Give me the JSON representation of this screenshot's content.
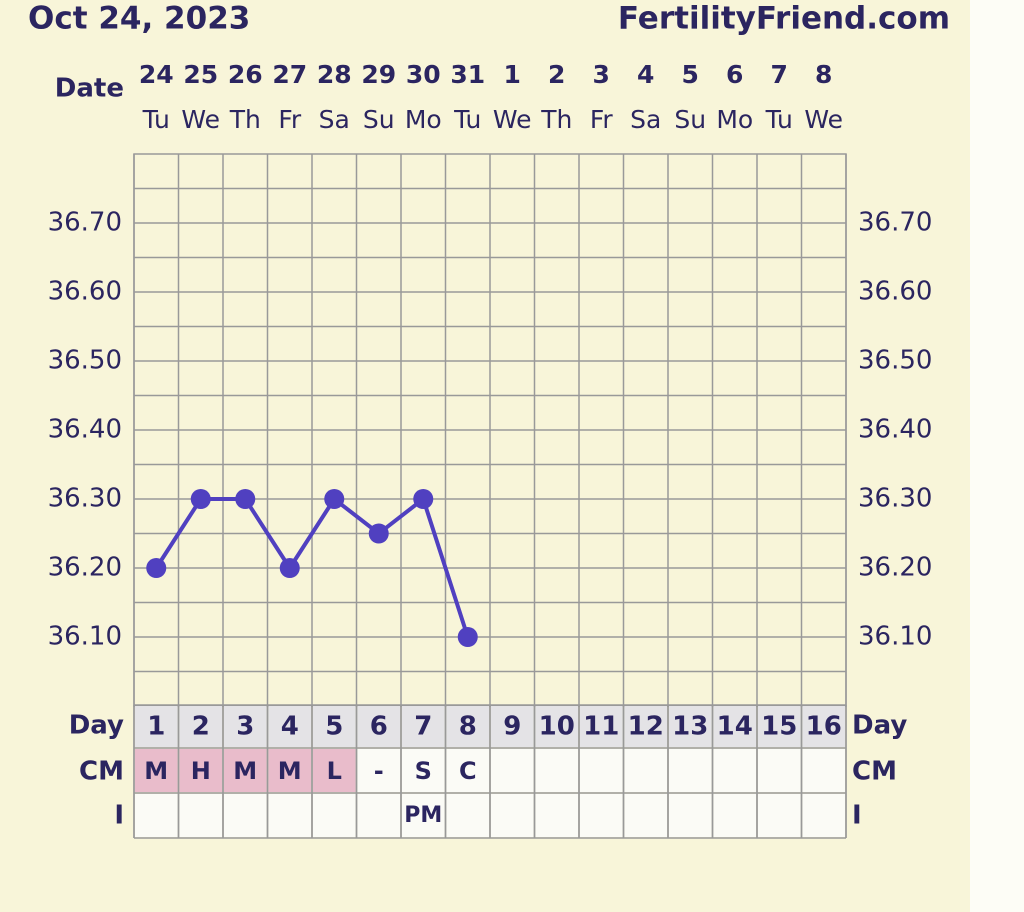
{
  "chart_data": {
    "type": "line",
    "title": "Oct 24, 2023",
    "brand": "FertilityFriend.com",
    "x_label": "Date",
    "categories": [
      "24",
      "25",
      "26",
      "27",
      "28",
      "29",
      "30",
      "31",
      "1",
      "2",
      "3",
      "4",
      "5",
      "6",
      "7",
      "8"
    ],
    "weekdays": [
      "Tu",
      "We",
      "Th",
      "Fr",
      "Sa",
      "Su",
      "Mo",
      "Tu",
      "We",
      "Th",
      "Fr",
      "Sa",
      "Su",
      "Mo",
      "Tu",
      "We"
    ],
    "series": [
      {
        "name": "Temperature",
        "color": "#5040c0",
        "values": [
          36.2,
          36.3,
          36.3,
          36.2,
          36.3,
          36.25,
          36.3,
          36.1,
          null,
          null,
          null,
          null,
          null,
          null,
          null,
          null
        ]
      }
    ],
    "ylim": [
      36.0,
      36.8
    ],
    "yticks": [
      {
        "value": 36.1,
        "label": "36.10"
      },
      {
        "value": 36.2,
        "label": "36.20"
      },
      {
        "value": 36.3,
        "label": "36.30"
      },
      {
        "value": 36.4,
        "label": "36.40"
      },
      {
        "value": 36.5,
        "label": "36.50"
      },
      {
        "value": 36.6,
        "label": "36.60"
      },
      {
        "value": 36.7,
        "label": "36.70"
      }
    ],
    "grid": true,
    "table": {
      "day_label": "Day",
      "days": [
        1,
        2,
        3,
        4,
        5,
        6,
        7,
        8,
        9,
        10,
        11,
        12,
        13,
        14,
        15,
        16
      ],
      "cm_label": "CM",
      "cm": [
        {
          "text": "M",
          "highlight": true
        },
        {
          "text": "H",
          "highlight": true
        },
        {
          "text": "M",
          "highlight": true
        },
        {
          "text": "M",
          "highlight": true
        },
        {
          "text": "L",
          "highlight": true
        },
        {
          "text": "-",
          "highlight": false
        },
        {
          "text": "S",
          "highlight": false
        },
        {
          "text": "C",
          "highlight": false
        },
        null,
        null,
        null,
        null,
        null,
        null,
        null,
        null
      ],
      "cm_highlight_color": "#e9bccb",
      "i_label": "I",
      "i": [
        null,
        null,
        null,
        null,
        null,
        null,
        "PM",
        null,
        null,
        null,
        null,
        null,
        null,
        null,
        null,
        null
      ]
    }
  }
}
